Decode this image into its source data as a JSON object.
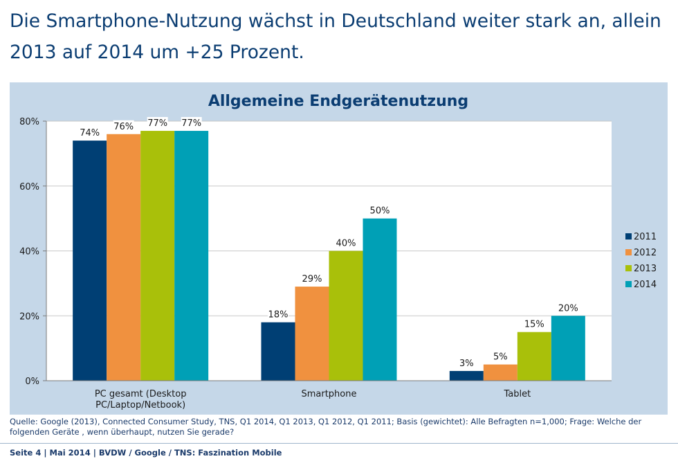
{
  "headline": "Die Smartphone-Nutzung wächst in Deutschland weiter stark an, allein 2013 auf 2014 um +25 Prozent.",
  "source": "Quelle: Google (2013), Connected Consumer Study, TNS, Q1 2014, Q1 2013, Q1 2012, Q1 2011; Basis (gewichtet): Alle Befragten n=1,000; Frage: Welche der folgenden Geräte , wenn überhaupt, nutzen Sie gerade?",
  "footer": "Seite 4 | Mai 2014 | BVDW / Google / TNS: Faszination Mobile",
  "chart_data": {
    "type": "bar",
    "title": "Allgemeine Endgerätenutzung",
    "xlabel": "",
    "ylabel": "",
    "categories": [
      "PC gesamt (Desktop PC/Laptop/Netbook)",
      "Smartphone",
      "Tablet"
    ],
    "category_lines": [
      [
        "PC gesamt (Desktop",
        "PC/Laptop/Netbook)"
      ],
      [
        "Smartphone"
      ],
      [
        "Tablet"
      ]
    ],
    "series": [
      {
        "name": "2011",
        "values": [
          74,
          18,
          3
        ],
        "labels": [
          "74%",
          "18%",
          "3%"
        ],
        "color": "#003f74"
      },
      {
        "name": "2012",
        "values": [
          76,
          29,
          5
        ],
        "labels": [
          "76%",
          "29%",
          "5%"
        ],
        "color": "#f0913f"
      },
      {
        "name": "2013",
        "values": [
          77,
          40,
          15
        ],
        "labels": [
          "77%",
          "40%",
          "15%"
        ],
        "color": "#a9c00a"
      },
      {
        "name": "2014",
        "values": [
          77,
          50,
          20
        ],
        "labels": [
          "77%",
          "50%",
          "20%"
        ],
        "color": "#00a0b6"
      }
    ],
    "ylim": [
      0,
      80
    ],
    "yticks": [
      0,
      20,
      40,
      60,
      80
    ],
    "ytick_labels": [
      "0%",
      "20%",
      "40%",
      "60%",
      "80%"
    ],
    "grid": true,
    "legend_position": "right"
  }
}
